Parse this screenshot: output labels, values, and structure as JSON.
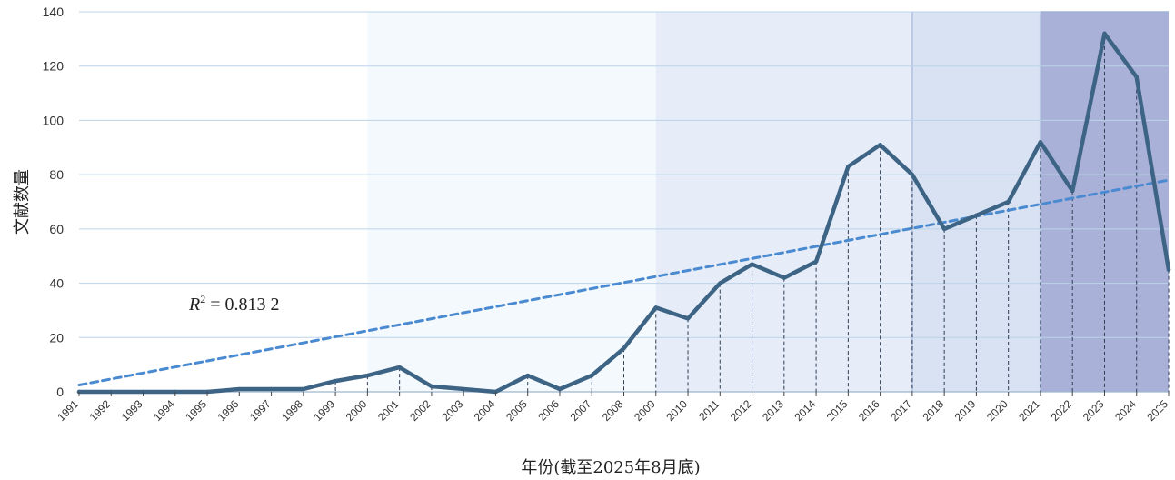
{
  "chart_data": {
    "type": "line",
    "xlabel": "年份(截至2025年8月底)",
    "ylabel": "文献数量",
    "ylim": [
      0,
      140
    ],
    "yticks": [
      0,
      20,
      40,
      60,
      80,
      100,
      120,
      140
    ],
    "grid": "horizontal",
    "categories": [
      "1991",
      "1992",
      "1993",
      "1994",
      "1995",
      "1996",
      "1997",
      "1998",
      "1999",
      "2000",
      "2001",
      "2002",
      "2003",
      "2004",
      "2005",
      "2006",
      "2007",
      "2008",
      "2009",
      "2010",
      "2011",
      "2012",
      "2013",
      "2014",
      "2015",
      "2016",
      "2017",
      "2018",
      "2019",
      "2020",
      "2021",
      "2022",
      "2023",
      "2024",
      "2025"
    ],
    "series": [
      {
        "values": [
          0,
          0,
          0,
          0,
          0,
          1,
          1,
          1,
          4,
          6,
          9,
          2,
          1,
          0,
          6,
          1,
          6,
          16,
          31,
          27,
          40,
          47,
          42,
          48,
          83,
          91,
          80,
          60,
          65,
          70,
          92,
          74,
          132,
          116,
          45
        ],
        "color": "#3d6484"
      }
    ],
    "trendline": {
      "start": [
        1991,
        2.5
      ],
      "end": [
        2025,
        78
      ],
      "color": "#4a8ad0",
      "style": "dashed"
    },
    "annotation": {
      "r2_label": "R",
      "r2_sup": "2",
      "r2_value": " = 0.813 2"
    },
    "shaded_periods": [
      {
        "from": "2000",
        "to": "2009",
        "color": "#f4f9fd"
      },
      {
        "from": "2009",
        "to": "2017",
        "color": "#e6edf8"
      },
      {
        "from": "2017",
        "to": "2021",
        "color": "#d8e2f3"
      },
      {
        "from": "2021",
        "to": "2025",
        "color": "#a9b1d8"
      }
    ]
  }
}
